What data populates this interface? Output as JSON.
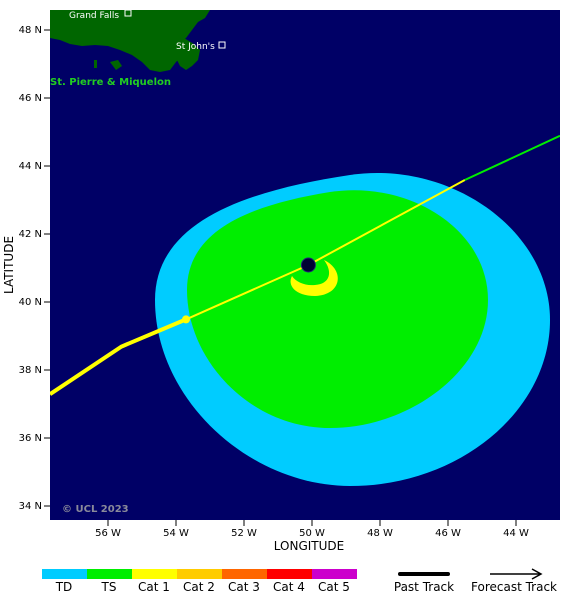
{
  "axes": {
    "xlabel": "LONGITUDE",
    "ylabel": "LATITUDE",
    "x_ticks": [
      "56 W",
      "54 W",
      "52 W",
      "50 W",
      "48 W",
      "46 W",
      "44 W"
    ],
    "y_ticks": [
      "48 N",
      "46 N",
      "44 N",
      "42 N",
      "40 N",
      "38 N",
      "36 N",
      "34 N"
    ]
  },
  "places": {
    "grand_falls": "Grand Falls",
    "st_johns": "St John's",
    "st_pierre": "St. Pierre & Miquelon"
  },
  "copyright": "© UCL 2023",
  "colors": {
    "ocean": "#000066",
    "land": "#006600",
    "td": "#00ccff",
    "ts": "#00ee00",
    "cat1": "#ffff00",
    "cat2": "#ffcc00",
    "cat3": "#ff6600",
    "cat4": "#ff0000",
    "cat5": "#cc00cc",
    "past_track": "#ffff00",
    "forecast_track": "#00ee00"
  },
  "legend": {
    "categories": [
      "TD",
      "TS",
      "Cat 1",
      "Cat 2",
      "Cat 3",
      "Cat 4",
      "Cat 5"
    ],
    "past_track": "Past Track",
    "forecast_track": "Forecast Track"
  },
  "chart_data": {
    "type": "map",
    "xlim": [
      -57.8,
      -42.8
    ],
    "ylim": [
      33.6,
      48.6
    ],
    "storm_center": {
      "lon": -50.2,
      "lat": 41.1
    },
    "past_track": [
      {
        "lon": -57.8,
        "lat": 37.3
      },
      {
        "lon": -55.7,
        "lat": 38.7
      },
      {
        "lon": -53.8,
        "lat": 39.5
      }
    ],
    "forecast_track": [
      {
        "lon": -53.8,
        "lat": 39.5
      },
      {
        "lon": -50.2,
        "lat": 41.1
      },
      {
        "lon": -45.6,
        "lat": 43.6
      },
      {
        "lon": -42.8,
        "lat": 44.9
      }
    ],
    "wind_zones": [
      {
        "category": "TD",
        "center": {
          "lon": -49.5,
          "lat": 40.1
        },
        "radius_lon": 5.6,
        "radius_lat": 4.2
      },
      {
        "category": "TS",
        "center": {
          "lon": -49.6,
          "lat": 40.1
        },
        "radius_lon": 4.6,
        "radius_lat": 3.3
      }
    ],
    "cat1_zone_center": {
      "lon": -49.9,
      "lat": 40.6
    }
  }
}
